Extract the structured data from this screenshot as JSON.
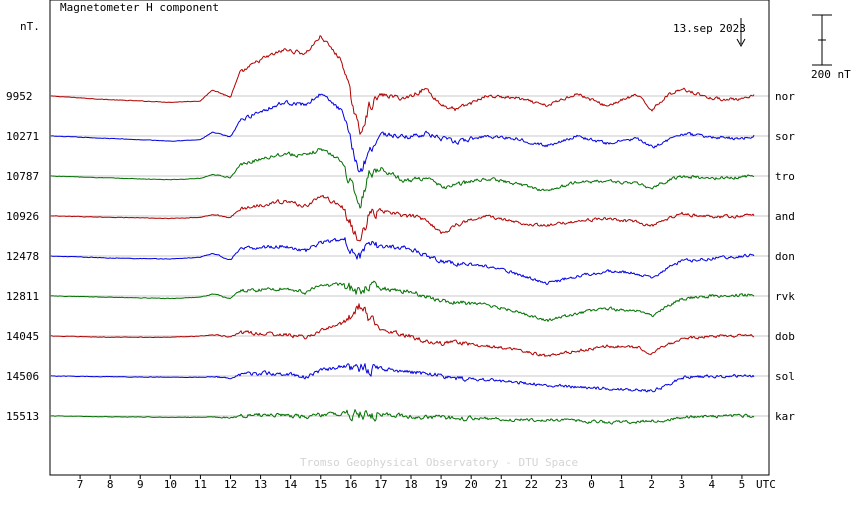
{
  "chart_data": {
    "type": "line",
    "title": "Magnetometer H component",
    "ylabel": "nT.",
    "date_label": "13.sep 2023",
    "scale_label": "200 nT",
    "scale_nT": 200,
    "xlabel": "UTC",
    "credit": "Tromso Geophysical Observatory - DTU Space",
    "x_ticks": [
      "7",
      "8",
      "9",
      "10",
      "11",
      "12",
      "13",
      "14",
      "15",
      "16",
      "17",
      "18",
      "19",
      "20",
      "21",
      "22",
      "23",
      "0",
      "1",
      "2",
      "3",
      "4",
      "5"
    ],
    "x_range_hours": [
      6.0,
      29.9
    ],
    "colors": {
      "red": "#b00000",
      "blue": "#0000e0",
      "green": "#007000"
    },
    "series": [
      {
        "name": "nor",
        "baseline": "9952",
        "color": "#b00000",
        "x": [
          6.0,
          8.0,
          10.0,
          11.0,
          11.4,
          12.0,
          12.3,
          13.0,
          13.8,
          14.5,
          15.0,
          15.7,
          16.3,
          16.6,
          17.0,
          17.8,
          18.5,
          19.0,
          19.5,
          20.5,
          21.5,
          22.5,
          23.5,
          24.5,
          25.5,
          26.0,
          26.5,
          27.0,
          28.0,
          29.0,
          29.4
        ],
        "y": [
          0,
          -15,
          -25,
          -20,
          25,
          -5,
          90,
          145,
          185,
          170,
          240,
          140,
          -150,
          -45,
          5,
          -10,
          30,
          -35,
          -55,
          0,
          -8,
          -40,
          10,
          -40,
          5,
          -55,
          0,
          30,
          -10,
          -15,
          0
        ]
      },
      {
        "name": "sor",
        "baseline": "10271",
        "color": "#0000e0",
        "x": [
          6.0,
          8.0,
          10.0,
          11.0,
          11.4,
          12.0,
          12.3,
          13.0,
          13.8,
          14.5,
          15.0,
          15.7,
          16.3,
          16.6,
          17.0,
          17.8,
          18.5,
          19.0,
          19.5,
          20.5,
          21.5,
          22.5,
          23.5,
          24.5,
          25.5,
          26.0,
          26.5,
          27.0,
          28.0,
          29.0,
          29.4
        ],
        "y": [
          0,
          -10,
          -20,
          -15,
          15,
          -5,
          60,
          100,
          135,
          125,
          170,
          100,
          -150,
          -60,
          10,
          -5,
          10,
          -10,
          -25,
          0,
          -10,
          -40,
          0,
          -30,
          -10,
          -45,
          -20,
          10,
          -5,
          -10,
          0
        ]
      },
      {
        "name": "tro",
        "baseline": "10787",
        "color": "#007000",
        "x": [
          6.0,
          8.0,
          10.0,
          11.0,
          11.4,
          12.0,
          12.3,
          13.0,
          13.8,
          14.5,
          15.0,
          15.7,
          16.3,
          16.6,
          17.0,
          17.8,
          18.5,
          19.0,
          19.5,
          20.5,
          21.5,
          22.5,
          23.5,
          24.5,
          25.5,
          26.0,
          26.5,
          27.0,
          28.0,
          29.0,
          29.4
        ],
        "y": [
          0,
          -8,
          -15,
          -10,
          5,
          -5,
          40,
          70,
          90,
          80,
          110,
          60,
          -120,
          10,
          30,
          -20,
          -5,
          -45,
          -35,
          -10,
          -30,
          -60,
          -25,
          -20,
          -30,
          -50,
          -20,
          0,
          -10,
          -5,
          5
        ]
      },
      {
        "name": "and",
        "baseline": "10926",
        "color": "#b00000",
        "x": [
          6.0,
          8.0,
          10.0,
          11.0,
          11.4,
          12.0,
          12.3,
          13.0,
          13.8,
          14.5,
          15.0,
          15.7,
          16.3,
          16.6,
          17.0,
          17.8,
          18.5,
          19.0,
          19.5,
          20.5,
          21.5,
          22.5,
          23.5,
          24.5,
          25.5,
          26.0,
          26.5,
          27.0,
          28.0,
          29.0,
          29.4
        ],
        "y": [
          0,
          -5,
          -10,
          -5,
          5,
          -5,
          25,
          45,
          60,
          40,
          80,
          40,
          -110,
          5,
          20,
          0,
          -10,
          -70,
          -35,
          0,
          -25,
          -40,
          -20,
          -10,
          -25,
          -40,
          -15,
          10,
          -5,
          0,
          5
        ]
      },
      {
        "name": "don",
        "baseline": "12478",
        "color": "#0000e0",
        "x": [
          6.0,
          8.0,
          10.0,
          11.0,
          11.4,
          12.0,
          12.3,
          13.0,
          13.8,
          14.5,
          15.0,
          15.7,
          16.3,
          16.6,
          17.0,
          17.8,
          18.5,
          19.0,
          19.5,
          20.5,
          21.5,
          22.5,
          23.5,
          24.5,
          25.5,
          26.0,
          26.5,
          27.0,
          28.0,
          29.0,
          29.4
        ],
        "y": [
          0,
          -8,
          -12,
          -5,
          10,
          -15,
          25,
          35,
          40,
          20,
          55,
          65,
          0,
          40,
          40,
          35,
          5,
          -20,
          -30,
          -40,
          -70,
          -110,
          -80,
          -60,
          -70,
          -90,
          -50,
          -20,
          -10,
          0,
          5
        ]
      },
      {
        "name": "rvk",
        "baseline": "12811",
        "color": "#007000",
        "x": [
          6.0,
          8.0,
          10.0,
          11.0,
          11.4,
          12.0,
          12.3,
          13.0,
          13.8,
          14.5,
          15.0,
          15.7,
          16.3,
          16.6,
          17.0,
          17.8,
          18.5,
          19.0,
          19.5,
          20.5,
          21.5,
          22.5,
          23.5,
          24.5,
          25.5,
          26.0,
          26.5,
          27.0,
          28.0,
          29.0,
          29.4
        ],
        "y": [
          0,
          -5,
          -10,
          -5,
          8,
          -10,
          20,
          25,
          30,
          15,
          40,
          50,
          10,
          35,
          30,
          20,
          0,
          -20,
          -25,
          -35,
          -60,
          -100,
          -70,
          -50,
          -60,
          -80,
          -40,
          -10,
          0,
          5,
          5
        ]
      },
      {
        "name": "dob",
        "baseline": "14045",
        "color": "#b00000",
        "x": [
          6.0,
          8.0,
          10.0,
          11.0,
          11.4,
          12.0,
          12.3,
          13.0,
          13.8,
          14.5,
          15.0,
          15.7,
          16.3,
          16.6,
          17.0,
          17.8,
          18.5,
          19.0,
          19.5,
          20.5,
          21.5,
          22.5,
          23.5,
          24.5,
          25.5,
          26.0,
          26.5,
          27.0,
          28.0,
          29.0,
          29.4
        ],
        "y": [
          0,
          -5,
          -5,
          0,
          5,
          -5,
          15,
          10,
          5,
          -5,
          20,
          50,
          120,
          70,
          30,
          5,
          -20,
          -30,
          -25,
          -40,
          -55,
          -80,
          -60,
          -40,
          -45,
          -70,
          -35,
          -10,
          0,
          0,
          2
        ]
      },
      {
        "name": "sol",
        "baseline": "14506",
        "color": "#0000e0",
        "x": [
          6.0,
          8.0,
          10.0,
          11.0,
          11.4,
          12.0,
          12.3,
          13.0,
          13.8,
          14.5,
          15.0,
          15.7,
          16.3,
          16.6,
          17.0,
          17.8,
          18.5,
          19.0,
          19.5,
          20.5,
          21.5,
          22.5,
          23.5,
          24.5,
          25.5,
          26.0,
          26.5,
          27.0,
          28.0,
          29.0,
          29.4
        ],
        "y": [
          0,
          -3,
          -5,
          -5,
          -3,
          -8,
          5,
          10,
          10,
          -5,
          20,
          40,
          35,
          25,
          30,
          20,
          10,
          0,
          -10,
          -15,
          -25,
          -35,
          -45,
          -50,
          -55,
          -60,
          -40,
          -5,
          0,
          0,
          0
        ]
      },
      {
        "name": "kar",
        "baseline": "15513",
        "color": "#007000",
        "x": [
          6.0,
          8.0,
          10.0,
          11.0,
          11.4,
          12.0,
          12.3,
          13.0,
          13.8,
          14.5,
          15.0,
          15.7,
          16.3,
          16.6,
          17.0,
          17.8,
          18.5,
          19.0,
          19.5,
          20.5,
          21.5,
          22.5,
          23.5,
          24.5,
          25.5,
          26.0,
          26.5,
          27.0,
          28.0,
          29.0,
          29.4
        ],
        "y": [
          0,
          -3,
          -5,
          -5,
          -3,
          -8,
          0,
          5,
          5,
          -5,
          5,
          10,
          5,
          0,
          5,
          0,
          -5,
          -5,
          -10,
          -10,
          -15,
          -15,
          -20,
          -25,
          -25,
          -20,
          -15,
          -5,
          0,
          0,
          0
        ]
      }
    ]
  }
}
